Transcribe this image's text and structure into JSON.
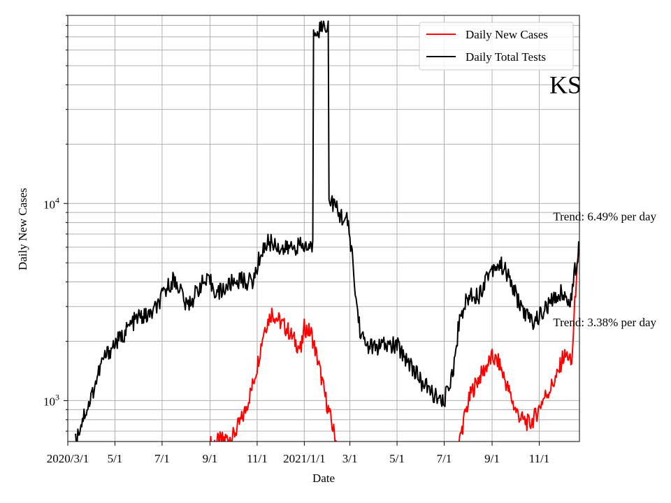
{
  "chart_data": {
    "type": "line",
    "xlabel": "Date",
    "ylabel": "Daily New Cases",
    "yscale": "log",
    "ylim": [
      620,
      90000
    ],
    "xlim": [
      "2020-03-01",
      "2021-12-23"
    ],
    "grid": true,
    "legend_position": "top-right",
    "x_ticks": [
      {
        "date": "2020-03-01",
        "label": "2020/3/1"
      },
      {
        "date": "2020-05-01",
        "label": "5/1"
      },
      {
        "date": "2020-07-01",
        "label": "7/1"
      },
      {
        "date": "2020-09-01",
        "label": "9/1"
      },
      {
        "date": "2020-11-01",
        "label": "11/1"
      },
      {
        "date": "2021-01-01",
        "label": "2021/1/1"
      },
      {
        "date": "2021-03-01",
        "label": "3/1"
      },
      {
        "date": "2021-05-01",
        "label": "5/1"
      },
      {
        "date": "2021-07-01",
        "label": "7/1"
      },
      {
        "date": "2021-09-01",
        "label": "9/1"
      },
      {
        "date": "2021-11-01",
        "label": "11/1"
      }
    ],
    "y_ticks": [
      {
        "value": 1000,
        "base": "10",
        "exp": "3"
      },
      {
        "value": 10000,
        "base": "10",
        "exp": "4"
      }
    ],
    "series": [
      {
        "name": "Daily New Cases",
        "color": "#ff0000",
        "points": [
          [
            "2020-09-01",
            600
          ],
          [
            "2020-10-01",
            660
          ],
          [
            "2020-10-15",
            850
          ],
          [
            "2020-10-25",
            1150
          ],
          [
            "2020-11-01",
            1500
          ],
          [
            "2020-11-10",
            2300
          ],
          [
            "2020-11-20",
            2800
          ],
          [
            "2020-12-01",
            2500
          ],
          [
            "2020-12-10",
            2300
          ],
          [
            "2020-12-20",
            2000
          ],
          [
            "2020-12-28",
            1800
          ],
          [
            "2021-01-01",
            2350
          ],
          [
            "2021-01-10",
            2200
          ],
          [
            "2021-01-20",
            1500
          ],
          [
            "2021-01-28",
            1050
          ],
          [
            "2021-02-05",
            780
          ],
          [
            "2021-02-12",
            600
          ],
          [
            "2021-07-20",
            600
          ],
          [
            "2021-07-28",
            850
          ],
          [
            "2021-08-05",
            1100
          ],
          [
            "2021-08-15",
            1300
          ],
          [
            "2021-08-25",
            1500
          ],
          [
            "2021-09-01",
            1650
          ],
          [
            "2021-09-10",
            1550
          ],
          [
            "2021-09-20",
            1200
          ],
          [
            "2021-10-01",
            900
          ],
          [
            "2021-10-10",
            800
          ],
          [
            "2021-10-20",
            760
          ],
          [
            "2021-10-28",
            850
          ],
          [
            "2021-11-05",
            1000
          ],
          [
            "2021-11-15",
            1150
          ],
          [
            "2021-11-25",
            1350
          ],
          [
            "2021-12-01",
            1650
          ],
          [
            "2021-12-08",
            1700
          ],
          [
            "2021-12-13",
            1500
          ],
          [
            "2021-12-16",
            2600
          ],
          [
            "2021-12-19",
            4300
          ],
          [
            "2021-12-23",
            5500
          ]
        ]
      },
      {
        "name": "Daily Total Tests",
        "color": "#000000",
        "points": [
          [
            "2020-03-11",
            620
          ],
          [
            "2020-03-15",
            700
          ],
          [
            "2020-03-22",
            850
          ],
          [
            "2020-03-28",
            950
          ],
          [
            "2020-04-05",
            1200
          ],
          [
            "2020-04-15",
            1600
          ],
          [
            "2020-04-22",
            1750
          ],
          [
            "2020-05-01",
            1950
          ],
          [
            "2020-05-10",
            2100
          ],
          [
            "2020-05-20",
            2400
          ],
          [
            "2020-06-01",
            2650
          ],
          [
            "2020-06-15",
            2700
          ],
          [
            "2020-06-25",
            3000
          ],
          [
            "2020-07-05",
            3600
          ],
          [
            "2020-07-15",
            4100
          ],
          [
            "2020-07-25",
            3700
          ],
          [
            "2020-08-01",
            3000
          ],
          [
            "2020-08-10",
            3300
          ],
          [
            "2020-08-20",
            3900
          ],
          [
            "2020-09-01",
            4000
          ],
          [
            "2020-09-10",
            3500
          ],
          [
            "2020-09-20",
            3700
          ],
          [
            "2020-10-01",
            4000
          ],
          [
            "2020-10-10",
            4100
          ],
          [
            "2020-10-20",
            4000
          ],
          [
            "2020-10-28",
            4100
          ],
          [
            "2020-11-05",
            5500
          ],
          [
            "2020-11-15",
            6400
          ],
          [
            "2020-11-25",
            6200
          ],
          [
            "2020-12-05",
            5800
          ],
          [
            "2020-12-15",
            6000
          ],
          [
            "2020-12-25",
            6100
          ],
          [
            "2021-01-01",
            6000
          ],
          [
            "2021-01-12",
            6000
          ],
          [
            "2021-01-13",
            76000
          ],
          [
            "2021-01-20",
            77000
          ],
          [
            "2021-01-28",
            80000
          ],
          [
            "2021-02-01",
            80000
          ],
          [
            "2021-02-02",
            10500
          ],
          [
            "2021-02-08",
            10000
          ],
          [
            "2021-02-15",
            8800
          ],
          [
            "2021-02-25",
            8200
          ],
          [
            "2021-03-03",
            6000
          ],
          [
            "2021-03-08",
            3500
          ],
          [
            "2021-03-14",
            2300
          ],
          [
            "2021-03-20",
            1950
          ],
          [
            "2021-04-01",
            1850
          ],
          [
            "2021-04-15",
            1900
          ],
          [
            "2021-05-01",
            1900
          ],
          [
            "2021-05-10",
            1700
          ],
          [
            "2021-05-20",
            1500
          ],
          [
            "2021-06-01",
            1250
          ],
          [
            "2021-06-10",
            1150
          ],
          [
            "2021-06-20",
            1050
          ],
          [
            "2021-06-28",
            950
          ],
          [
            "2021-07-05",
            1100
          ],
          [
            "2021-07-15",
            1600
          ],
          [
            "2021-07-20",
            2500
          ],
          [
            "2021-07-28",
            3100
          ],
          [
            "2021-08-05",
            3500
          ],
          [
            "2021-08-15",
            3400
          ],
          [
            "2021-08-25",
            4300
          ],
          [
            "2021-09-05",
            4900
          ],
          [
            "2021-09-15",
            4800
          ],
          [
            "2021-09-25",
            4000
          ],
          [
            "2021-10-05",
            3200
          ],
          [
            "2021-10-15",
            2700
          ],
          [
            "2021-10-25",
            2500
          ],
          [
            "2021-11-05",
            2800
          ],
          [
            "2021-11-15",
            3100
          ],
          [
            "2021-11-25",
            3400
          ],
          [
            "2021-12-01",
            3600
          ],
          [
            "2021-12-08",
            3100
          ],
          [
            "2021-12-13",
            3400
          ],
          [
            "2021-12-16",
            4400
          ],
          [
            "2021-12-19",
            4800
          ],
          [
            "2021-12-23",
            6500
          ]
        ]
      }
    ],
    "annotations": [
      {
        "text": "Trend: 6.49% per day",
        "date": "2021-12-23",
        "value": 8600
      },
      {
        "text": "Trend: 3.38% per day",
        "date": "2021-12-23",
        "value": 2500
      },
      {
        "text": "KS",
        "date": "2021-12-23",
        "value": 40000
      }
    ]
  }
}
